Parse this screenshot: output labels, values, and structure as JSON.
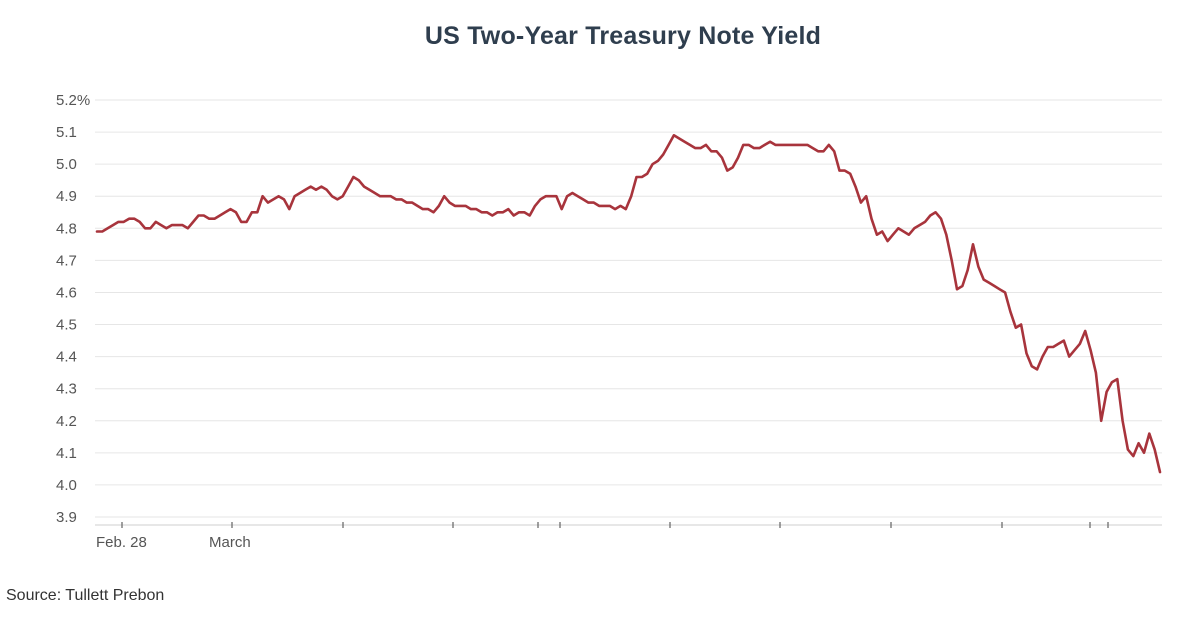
{
  "chart_data": {
    "type": "line",
    "title": "US Two-Year Treasury Note Yield",
    "source": "Source: Tullett Prebon",
    "ylim": [
      3.9,
      5.2
    ],
    "y_ticks": [
      {
        "value": 5.2,
        "label": "5.2%"
      },
      {
        "value": 5.1,
        "label": "5.1"
      },
      {
        "value": 5.0,
        "label": "5.0"
      },
      {
        "value": 4.9,
        "label": "4.9"
      },
      {
        "value": 4.8,
        "label": "4.8"
      },
      {
        "value": 4.7,
        "label": "4.7"
      },
      {
        "value": 4.6,
        "label": "4.6"
      },
      {
        "value": 4.5,
        "label": "4.5"
      },
      {
        "value": 4.4,
        "label": "4.4"
      },
      {
        "value": 4.3,
        "label": "4.3"
      },
      {
        "value": 4.2,
        "label": "4.2"
      },
      {
        "value": 4.1,
        "label": "4.1"
      },
      {
        "value": 4.0,
        "label": "4.0"
      },
      {
        "value": 3.9,
        "label": "3.9"
      }
    ],
    "x_tick_labels": [
      "Feb. 28",
      "March"
    ],
    "grid": true,
    "line_color": "#a8343c",
    "series": [
      {
        "values": [
          4.79,
          4.79,
          4.8,
          4.81,
          4.82,
          4.82,
          4.83,
          4.83,
          4.82,
          4.8,
          4.8,
          4.82,
          4.81,
          4.8,
          4.81,
          4.81,
          4.81,
          4.8,
          4.82,
          4.84,
          4.84,
          4.83,
          4.83,
          4.84,
          4.85,
          4.86,
          4.85,
          4.82,
          4.82,
          4.85,
          4.85,
          4.9,
          4.88,
          4.89,
          4.9,
          4.89,
          4.86,
          4.9,
          4.91,
          4.92,
          4.93,
          4.92,
          4.93,
          4.92,
          4.9,
          4.89,
          4.9,
          4.93,
          4.96,
          4.95,
          4.93,
          4.92,
          4.91,
          4.9,
          4.9,
          4.9,
          4.89,
          4.89,
          4.88,
          4.88,
          4.87,
          4.86,
          4.86,
          4.85,
          4.87,
          4.9,
          4.88,
          4.87,
          4.87,
          4.87,
          4.86,
          4.86,
          4.85,
          4.85,
          4.84,
          4.85,
          4.85,
          4.86,
          4.84,
          4.85,
          4.85,
          4.84,
          4.87,
          4.89,
          4.9,
          4.9,
          4.9,
          4.86,
          4.9,
          4.91,
          4.9,
          4.89,
          4.88,
          4.88,
          4.87,
          4.87,
          4.87,
          4.86,
          4.87,
          4.86,
          4.9,
          4.96,
          4.96,
          4.97,
          5.0,
          5.01,
          5.03,
          5.06,
          5.09,
          5.08,
          5.07,
          5.06,
          5.05,
          5.05,
          5.06,
          5.04,
          5.04,
          5.02,
          4.98,
          4.99,
          5.02,
          5.06,
          5.06,
          5.05,
          5.05,
          5.06,
          5.07,
          5.06,
          5.06,
          5.06,
          5.06,
          5.06,
          5.06,
          5.06,
          5.05,
          5.04,
          5.04,
          5.06,
          5.04,
          4.98,
          4.98,
          4.97,
          4.93,
          4.88,
          4.9,
          4.83,
          4.78,
          4.79,
          4.76,
          4.78,
          4.8,
          4.79,
          4.78,
          4.8,
          4.81,
          4.82,
          4.84,
          4.85,
          4.83,
          4.78,
          4.7,
          4.61,
          4.62,
          4.67,
          4.75,
          4.68,
          4.64,
          4.63,
          4.62,
          4.61,
          4.6,
          4.54,
          4.49,
          4.5,
          4.41,
          4.37,
          4.36,
          4.4,
          4.43,
          4.43,
          4.44,
          4.45,
          4.4,
          4.42,
          4.44,
          4.48,
          4.42,
          4.35,
          4.2,
          4.29,
          4.32,
          4.33,
          4.2,
          4.11,
          4.09,
          4.13,
          4.1,
          4.16,
          4.11,
          4.04
        ]
      }
    ]
  }
}
